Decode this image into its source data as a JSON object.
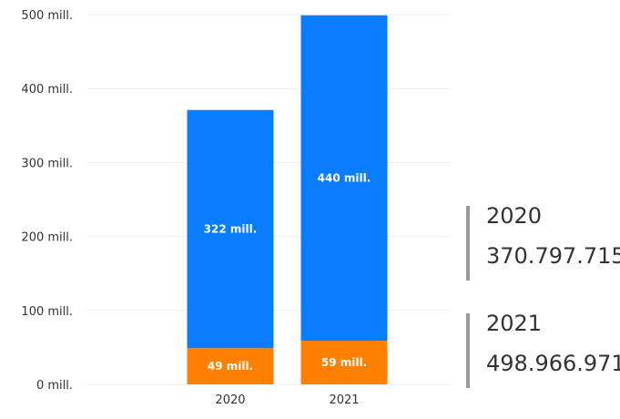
{
  "chart_data": {
    "type": "bar",
    "stacked": true,
    "categories": [
      "2020",
      "2021"
    ],
    "series": [
      {
        "values": [
          49,
          59
        ],
        "labels": [
          "49 mill.",
          "59 mill."
        ],
        "color": "#ff7f00"
      },
      {
        "values": [
          322,
          440
        ],
        "labels": [
          "322 mill.",
          "440 mill."
        ],
        "color": "#0a7cff"
      }
    ],
    "title": "",
    "xlabel": "",
    "ylabel": "",
    "ylim": [
      0,
      500
    ],
    "yticks": [
      0,
      100,
      200,
      300,
      400,
      500
    ],
    "ytick_labels": [
      "0 mill.",
      "100 mill.",
      "200 mill.",
      "300 mill.",
      "400 mill.",
      "500 mill."
    ],
    "grid": true,
    "gridline_color": "#eeeeee"
  },
  "cards": [
    {
      "title": "2020",
      "value": "370.797.715"
    },
    {
      "title": "2021",
      "value": "498.966.971"
    }
  ]
}
